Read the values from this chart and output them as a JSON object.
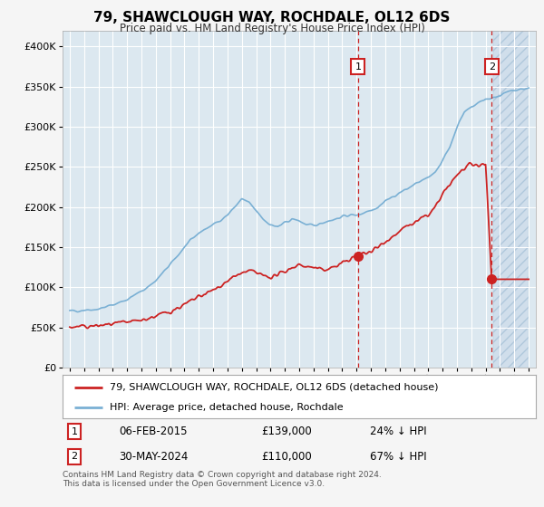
{
  "title": "79, SHAWCLOUGH WAY, ROCHDALE, OL12 6DS",
  "subtitle": "Price paid vs. HM Land Registry's House Price Index (HPI)",
  "hpi_label": "HPI: Average price, detached house, Rochdale",
  "price_label": "79, SHAWCLOUGH WAY, ROCHDALE, OL12 6DS (detached house)",
  "annotation1": {
    "label": "1",
    "date": "06-FEB-2015",
    "price": 139000,
    "pct": "24% ↓ HPI",
    "year": 2015.1
  },
  "annotation2": {
    "label": "2",
    "date": "30-MAY-2024",
    "price": 110000,
    "pct": "67% ↓ HPI",
    "year": 2024.42
  },
  "footer": "Contains HM Land Registry data © Crown copyright and database right 2024.\nThis data is licensed under the Open Government Licence v3.0.",
  "hpi_color": "#7ab0d4",
  "price_color": "#cc2222",
  "annotation_color": "#cc2222",
  "background_color": "#f5f5f5",
  "plot_bg_color": "#dce8f0",
  "ylim": [
    0,
    420000
  ],
  "yticks": [
    0,
    50000,
    100000,
    150000,
    200000,
    250000,
    300000,
    350000,
    400000
  ],
  "xlim_left": 1994.5,
  "xlim_right": 2027.5,
  "hatch_start": 2024.5
}
